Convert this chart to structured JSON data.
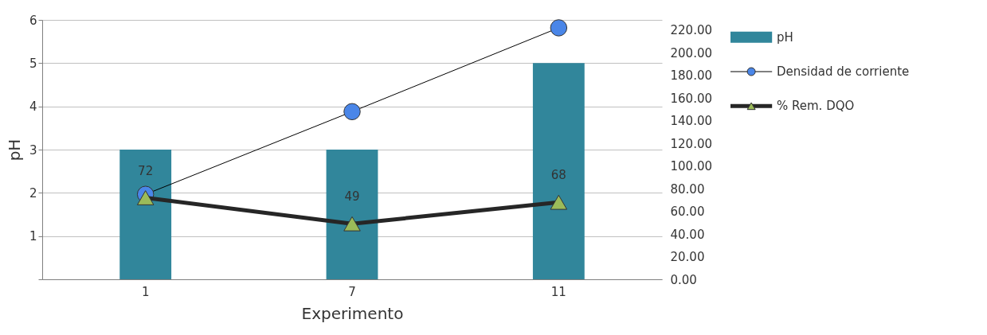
{
  "chart_data": {
    "type": "bar",
    "xlabel": "Experimento",
    "ylabel": "pH",
    "categories": [
      "1",
      "7",
      "11"
    ],
    "series": [
      {
        "name": "pH",
        "color": "#31869b",
        "values": [
          3,
          3,
          5
        ]
      },
      {
        "name": "Densidad de corriente",
        "type": "line",
        "axis": "y2",
        "color": "#4a86e8",
        "marker": "circle",
        "values": [
          75,
          148,
          222
        ]
      },
      {
        "name": "% Rem. DQO",
        "type": "line",
        "axis": "y2",
        "color": "#9bbb59",
        "marker": "triangle",
        "values": [
          72,
          49,
          68
        ],
        "value_labels": [
          "72",
          "49",
          "68"
        ]
      }
    ],
    "ylim": [
      0,
      6
    ],
    "yticks": [
      {
        "value": 0,
        "label": null
      },
      1,
      2,
      3,
      4,
      5,
      6
    ],
    "y2lim": [
      0,
      229
    ],
    "y2ticks": [
      {
        "value": 0,
        "label": "0.00"
      },
      {
        "value": 20,
        "label": "20.00"
      },
      {
        "value": 40,
        "label": "40.00"
      },
      {
        "value": 60,
        "label": "60.00"
      },
      {
        "value": 80,
        "label": "80.00"
      },
      {
        "value": 100,
        "label": "100.00"
      },
      {
        "value": 120,
        "label": "120.00"
      },
      {
        "value": 140,
        "label": "140.00"
      },
      {
        "value": 160,
        "label": "160.00"
      },
      {
        "value": 180,
        "label": "180.00"
      },
      {
        "value": 200,
        "label": "200.00"
      },
      {
        "value": 220,
        "label": "220.00"
      }
    ],
    "grid": "y",
    "legend": "right",
    "line_style": "solid"
  }
}
